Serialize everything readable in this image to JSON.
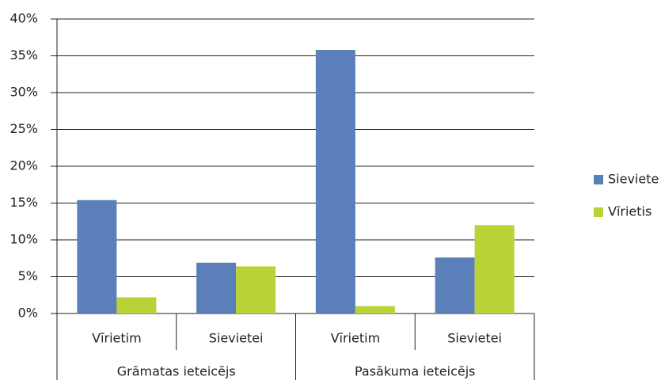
{
  "chart_data": {
    "type": "bar",
    "categories": [
      "Vīrietim",
      "Sievietei",
      "Vīrietim",
      "Sievietei"
    ],
    "category_groups": [
      "Grāmatas ieteicējs",
      "Pasākuma ieteicējs"
    ],
    "series": [
      {
        "name": "Sieviete",
        "color": "#5b7fb8",
        "values": [
          15.4,
          6.9,
          35.8,
          7.6
        ]
      },
      {
        "name": "Vīrietis",
        "color": "#b9d237",
        "values": [
          2.2,
          6.4,
          1.0,
          12.0
        ]
      }
    ],
    "ylim": [
      0,
      40
    ],
    "yticks": [
      {
        "value": 0,
        "label": "0%"
      },
      {
        "value": 5,
        "label": "5%"
      },
      {
        "value": 10,
        "label": "10%"
      },
      {
        "value": 15,
        "label": "15%"
      },
      {
        "value": 20,
        "label": "20%"
      },
      {
        "value": 25,
        "label": "25%"
      },
      {
        "value": 30,
        "label": "30%"
      },
      {
        "value": 35,
        "label": "35%"
      },
      {
        "value": 40,
        "label": "40%"
      }
    ],
    "grid": true,
    "legend": "right"
  }
}
